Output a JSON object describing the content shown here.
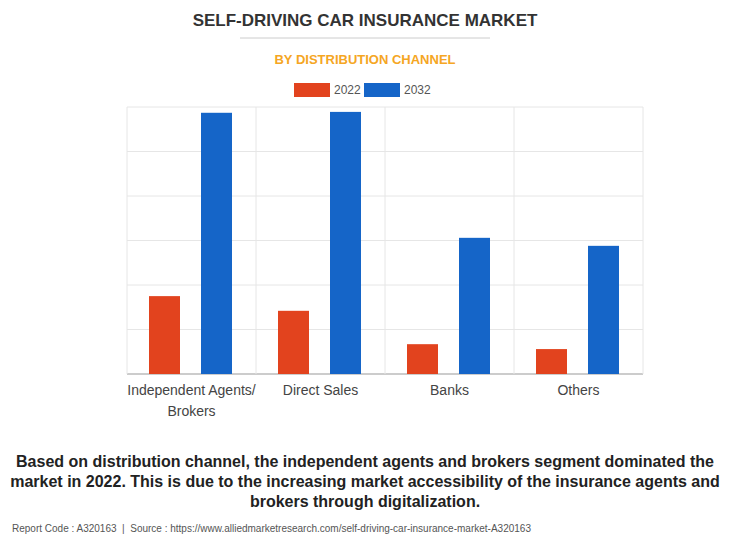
{
  "chart_data": {
    "type": "bar",
    "title": "SELF-DRIVING CAR INSURANCE MARKET",
    "subtitle": "BY DISTRIBUTION CHANNEL",
    "categories": [
      "Independent Agents/ Brokers",
      "Direct Sales",
      "Banks",
      "Others"
    ],
    "series": [
      {
        "name": "2022",
        "color": "#e2431e",
        "values": [
          1.75,
          1.42,
          0.67,
          0.56
        ]
      },
      {
        "name": "2032",
        "color": "#1565c8",
        "values": [
          5.87,
          5.89,
          3.06,
          2.88
        ]
      }
    ],
    "ylim": [
      0,
      6
    ],
    "yticks": [
      0,
      1,
      2,
      3,
      4,
      5,
      6
    ],
    "grid": true,
    "tick_labels": "x",
    "legend": "top",
    "caption": "Based on distribution channel, the independent agents and brokers segment dominated the market in 2022. This is due to the increasing market accessibility of the insurance agents and brokers through digitalization.",
    "footer": "Report Code : A320163  |  Source : https://www.alliedmarketresearch.com/self-driving-car-insurance-market-A320163"
  }
}
